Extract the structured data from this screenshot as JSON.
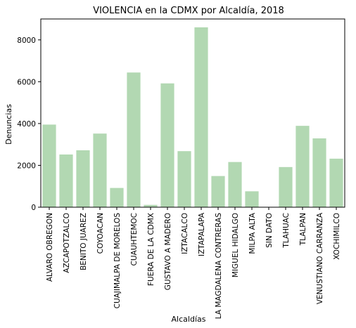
{
  "chart_data": {
    "type": "bar",
    "title": "VIOLENCIA en la CDMX por Alcaldía, 2018",
    "xlabel": "Alcaldías",
    "ylabel": "Denuncias",
    "ylim": [
      0,
      9000
    ],
    "yticks": [
      0,
      2000,
      4000,
      6000,
      8000
    ],
    "grid": false,
    "legend": "none",
    "bar_color": "#b2d8b2",
    "categories": [
      "ALVARO OBREGON",
      "AZCAPOTZALCO",
      "BENITO JUAREZ",
      "COYOACAN",
      "CUAJIMALPA DE MORELOS",
      "CUAUHTEMOC",
      "FUERA DE LA CDMX",
      "GUSTAVO A MADERO",
      "IZTACALCO",
      "IZTAPALAPA",
      "LA MAGDALENA CONTRERAS",
      "MIGUEL HIDALGO",
      "MILPA ALTA",
      "SIN DATO",
      "TLAHUAC",
      "TLALPAN",
      "VENUSTIANO CARRANZA",
      "XOCHIMILCO"
    ],
    "values": [
      3950,
      2520,
      2720,
      3520,
      920,
      6440,
      110,
      5920,
      2680,
      8600,
      1490,
      2160,
      760,
      0,
      1920,
      3890,
      3290,
      2320
    ]
  }
}
